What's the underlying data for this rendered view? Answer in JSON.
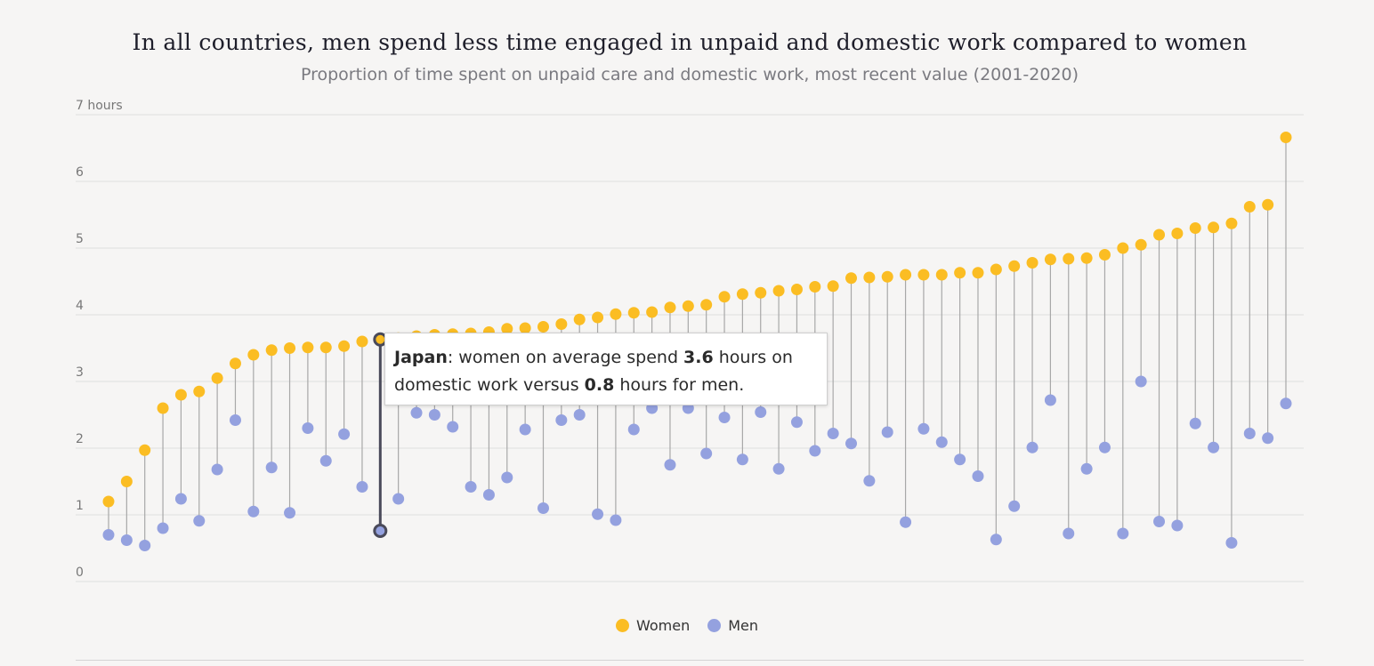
{
  "chart_data": {
    "type": "dumbbell",
    "title": "In all countries, men spend less time engaged in unpaid and domestic work compared to women",
    "subtitle": "Proportion of time spent on unpaid care and domestic work, most recent value (2001-2020)",
    "ylim": [
      0,
      7
    ],
    "y_ticks": [
      "0",
      "1",
      "2",
      "3",
      "4",
      "5",
      "6",
      "7 hours"
    ],
    "grid": true,
    "legend_position": "bottom-center",
    "series": [
      {
        "name": "Women",
        "color": "#fbbd23",
        "values": [
          1.2,
          1.5,
          1.97,
          2.6,
          2.8,
          2.85,
          3.05,
          3.27,
          3.4,
          3.47,
          3.5,
          3.51,
          3.51,
          3.53,
          3.6,
          3.63,
          3.65,
          3.68,
          3.7,
          3.71,
          3.72,
          3.74,
          3.79,
          3.8,
          3.82,
          3.86,
          3.93,
          3.96,
          4.01,
          4.03,
          4.04,
          4.11,
          4.13,
          4.15,
          4.27,
          4.31,
          4.33,
          4.36,
          4.38,
          4.42,
          4.43,
          4.55,
          4.56,
          4.57,
          4.6,
          4.6,
          4.6,
          4.63,
          4.63,
          4.68,
          4.73,
          4.78,
          4.83,
          4.84,
          4.85,
          4.9,
          5.0,
          5.05,
          5.2,
          5.22,
          5.3,
          5.31,
          5.37,
          5.62,
          5.65,
          6.66
        ]
      },
      {
        "name": "Men",
        "color": "#94a1df",
        "values": [
          0.7,
          0.62,
          0.54,
          0.8,
          1.24,
          0.91,
          1.68,
          2.42,
          1.05,
          1.71,
          1.03,
          2.3,
          1.81,
          2.21,
          1.42,
          0.76,
          1.24,
          2.53,
          2.5,
          2.32,
          1.42,
          1.3,
          1.56,
          2.28,
          1.1,
          2.42,
          2.5,
          1.01,
          0.92,
          2.28,
          2.6,
          1.75,
          2.6,
          1.92,
          2.46,
          1.83,
          2.54,
          1.69,
          2.39,
          1.96,
          2.22,
          2.07,
          1.51,
          2.24,
          0.89,
          2.29,
          2.09,
          1.83,
          1.58,
          0.63,
          1.13,
          2.01,
          2.72,
          0.72,
          1.69,
          2.01,
          0.72,
          3.0,
          0.9,
          0.84,
          2.37,
          2.01,
          0.58,
          2.22,
          2.15,
          2.67
        ]
      }
    ],
    "highlight": {
      "index": 15,
      "country": "Japan",
      "text_1": ": women on average spend ",
      "women_value": "3.6",
      "text_2": " hours on domestic work versus ",
      "men_value": "0.8",
      "text_3": " hours for men."
    }
  },
  "legend": {
    "women_label": "Women",
    "men_label": "Men"
  }
}
